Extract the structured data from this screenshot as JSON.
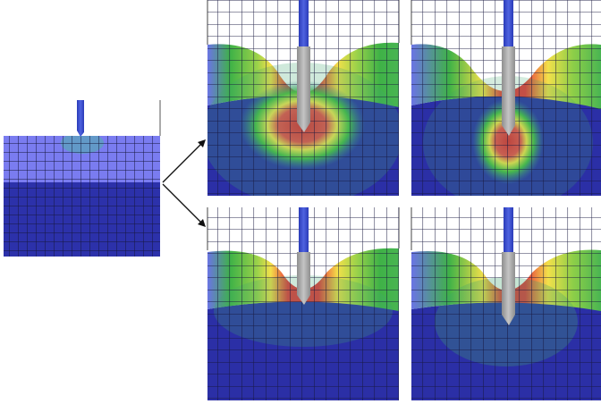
{
  "figure": {
    "panels": [
      {
        "id": "initial",
        "state": "undeformed"
      },
      {
        "id": "top-middle",
        "state": "deformed-deep-wide"
      },
      {
        "id": "top-right",
        "state": "deformed-deep-narrow"
      },
      {
        "id": "bottom-middle",
        "state": "deformed-shallow-wide"
      },
      {
        "id": "bottom-right",
        "state": "deformed-shallow-narrow"
      }
    ],
    "colors": {
      "mesh_light": "#7373ee",
      "mesh_dark": "#2b2fa6",
      "grid_line": "#15153a",
      "hot": "#e8323c",
      "warm": "#f5e44a",
      "mid": "#49c43f",
      "tool_blue": "#3a4ed0",
      "tool_gray": "#a6a6a6"
    }
  }
}
